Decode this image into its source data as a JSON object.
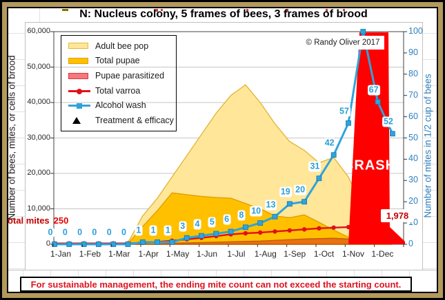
{
  "title": "N: Nucleus colony, 5 frames of bees, 3 frames of brood",
  "copyright": "© Randy Oliver 2017",
  "crash_label": "CRASH",
  "start_annotation": {
    "label": "Total mites",
    "value": "250"
  },
  "end_annotation": {
    "value": "1,978"
  },
  "footer_note": "For sustainable management, the ending mite count can not exceed the starting count.",
  "left_axis": {
    "title": "Number of bees, mites, or cells of brood",
    "tick_labels": [
      "0",
      "10,000",
      "20,000",
      "30,000",
      "40,000",
      "50,000",
      "60,000"
    ],
    "min": 0,
    "max": 60000
  },
  "right_axis": {
    "title": "Number of mites in 1/2 cup of bees",
    "tick_labels": [
      "0",
      "10",
      "20",
      "30",
      "40",
      "50",
      "60",
      "70",
      "80",
      "90",
      "100"
    ],
    "min": 0,
    "max": 100,
    "color": "#2e7fbe"
  },
  "x_axis": {
    "month_labels": [
      "1-Jan",
      "1-Feb",
      "1-Mar",
      "1-Apr",
      "1-May",
      "1-Jun",
      "1-Jul",
      "1-Aug",
      "1-Sep",
      "1-Oct",
      "1-Nov",
      "1-Dec"
    ]
  },
  "legend": {
    "items": [
      {
        "label": "Adult bee pop",
        "swatch": "area",
        "fill": "#ffe699",
        "stroke": "#e2b83c"
      },
      {
        "label": "Total pupae",
        "swatch": "area",
        "fill": "#ffc000",
        "stroke": "#dfa000"
      },
      {
        "label": "Pupae parasitized",
        "swatch": "area",
        "fill": "#f4787d",
        "stroke": "#e53238"
      },
      {
        "label": "Total varroa",
        "swatch": "line",
        "color": "#e01018",
        "marker": "circle"
      },
      {
        "label": "Alcohol wash",
        "swatch": "line",
        "color": "#2fa3dc",
        "marker": "square"
      },
      {
        "label": "Treatment & efficacy",
        "swatch": "triangle",
        "color": "#000000"
      }
    ]
  },
  "chart_data": {
    "type": "area",
    "x": [
      "1-Jan",
      "15-Jan",
      "1-Feb",
      "15-Feb",
      "1-Mar",
      "15-Mar",
      "1-Apr",
      "15-Apr",
      "1-May",
      "15-May",
      "1-Jun",
      "15-Jun",
      "1-Jul",
      "15-Jul",
      "1-Aug",
      "15-Aug",
      "1-Sep",
      "15-Sep",
      "1-Oct",
      "15-Oct",
      "1-Nov",
      "15-Nov",
      "1-Dec",
      "15-Dec"
    ],
    "series": [
      {
        "name": "Adult bee pop",
        "axis": "left",
        "kind": "area",
        "fill": "#ffe699",
        "stroke": "#e2b83c",
        "values": [
          0,
          0,
          0,
          0,
          0,
          500,
          8000,
          13000,
          19000,
          25000,
          31000,
          37000,
          42000,
          45000,
          40000,
          34000,
          29000,
          26500,
          23000,
          24500,
          19000,
          10000,
          0,
          0
        ]
      },
      {
        "name": "Total pupae",
        "axis": "left",
        "kind": "area",
        "fill": "#ffc000",
        "stroke": "#dfa000",
        "values": [
          0,
          0,
          0,
          0,
          0,
          200,
          5000,
          9500,
          14500,
          14000,
          13500,
          13200,
          13000,
          11500,
          10000,
          8000,
          7500,
          8300,
          6200,
          4000,
          2000,
          500,
          0,
          0
        ]
      },
      {
        "name": "Pupae parasitized",
        "axis": "left",
        "kind": "area",
        "fill": "#e9710f",
        "stroke": "#c55a11",
        "values": [
          0,
          0,
          0,
          0,
          0,
          0,
          0,
          100,
          300,
          400,
          500,
          600,
          700,
          800,
          900,
          1100,
          1300,
          1500,
          1600,
          1700,
          1500,
          800,
          0,
          0
        ]
      },
      {
        "name": "Total varroa",
        "axis": "left",
        "kind": "line",
        "color": "#e01018",
        "values": [
          250,
          250,
          250,
          250,
          250,
          250,
          400,
          700,
          1000,
          1400,
          1800,
          2300,
          2800,
          3100,
          3300,
          3600,
          3900,
          4200,
          4500,
          4700,
          4850,
          5000,
          3200,
          1978
        ]
      },
      {
        "name": "Alcohol wash",
        "axis": "right",
        "kind": "line",
        "color": "#2fa3dc",
        "values": [
          0,
          0,
          0,
          0,
          0,
          0,
          1,
          1,
          1,
          3,
          4,
          5,
          6,
          8,
          10,
          13,
          19,
          20,
          31,
          42,
          57,
          100,
          67,
          52
        ],
        "labels": [
          "0",
          "0",
          "0",
          "0",
          "0",
          "0",
          "1",
          "1",
          "1",
          "3",
          "4",
          "5",
          "6",
          "8",
          "10",
          "13",
          "19",
          "20",
          "31",
          "42",
          "57",
          "",
          "67",
          "52"
        ]
      }
    ],
    "annotations": {
      "start_total_mites": 250,
      "end_total_mites": 1978,
      "crash": "CRASH"
    },
    "legend_position": "upper-left",
    "grid": "horizontal-left-axis-10000"
  }
}
